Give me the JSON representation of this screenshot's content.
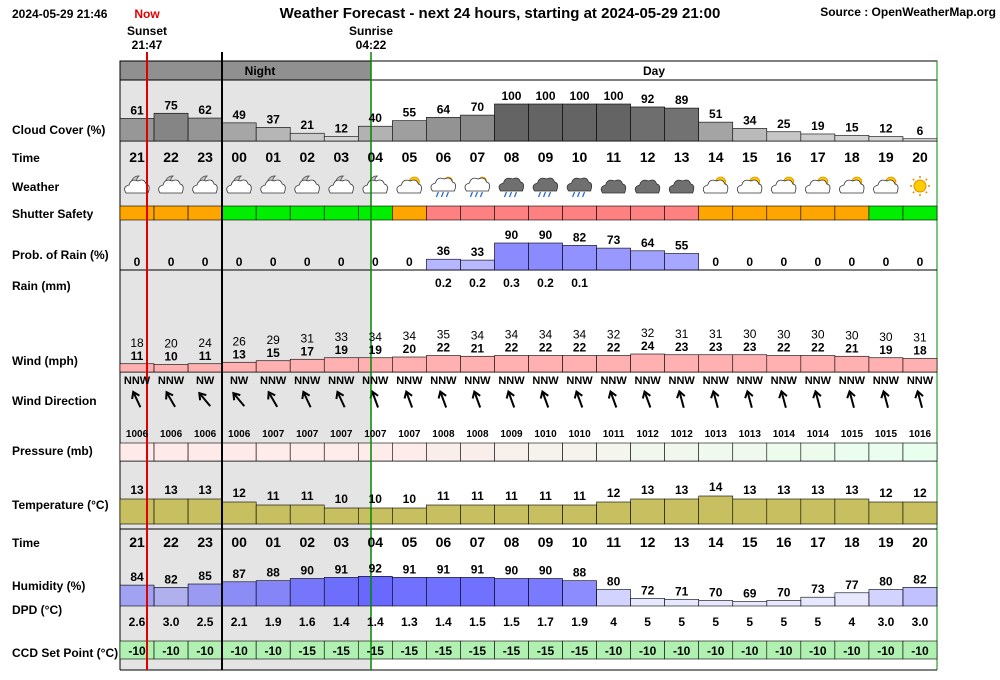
{
  "header": {
    "timestamp": "2024-05-29 21:46",
    "title": "Weather Forecast - next 24 hours, starting at 2024-05-29 21:00",
    "source": "Source : OpenWeatherMap.org"
  },
  "markers": {
    "now": "Now",
    "sunset": "Sunset",
    "sunset_time": "21:47",
    "sunrise": "Sunrise",
    "sunrise_time": "04:22",
    "night": "Night",
    "day": "Day"
  },
  "colors": {
    "night_bg": "#e4e4e4",
    "night_band": "#909090",
    "now_line": "#e00000",
    "sunrise_line": "#008800",
    "safety_orange": "#ffa500",
    "safety_green": "#00ee00",
    "safety_red": "#ff8080",
    "rain_bar": "#8080ff",
    "wind_bar": "#ffb0b0",
    "temp_bar": "#c8c060",
    "humidity_bar": "#6060ff",
    "ccd_bg": "#b0f0b0"
  },
  "chart_data": {
    "type": "table",
    "hours": [
      "21",
      "22",
      "23",
      "00",
      "01",
      "02",
      "03",
      "04",
      "05",
      "06",
      "07",
      "08",
      "09",
      "10",
      "11",
      "12",
      "13",
      "14",
      "15",
      "16",
      "17",
      "18",
      "19",
      "20"
    ],
    "row_labels": {
      "cloud": "Cloud Cover (%)",
      "time": "Time",
      "weather": "Weather",
      "safety": "Shutter Safety",
      "prob": "Prob. of Rain (%)",
      "rain": "Rain (mm)",
      "wind": "Wind (mph)",
      "wdir": "Wind Direction",
      "pressure": "Pressure (mb)",
      "temp": "Temperature (°C)",
      "time2": "Time",
      "humidity": "Humidity (%)",
      "dpd": "DPD (°C)",
      "ccd": "CCD Set Point (°C)"
    },
    "cloud_cover": [
      61,
      75,
      62,
      49,
      37,
      21,
      12,
      40,
      55,
      64,
      70,
      100,
      100,
      100,
      100,
      92,
      89,
      51,
      34,
      25,
      19,
      15,
      12,
      6
    ],
    "weather_icons": [
      "partly-cloudy-night-icon",
      "partly-cloudy-night-icon",
      "partly-cloudy-night-icon",
      "partly-cloudy-night-icon",
      "partly-cloudy-night-icon",
      "partly-cloudy-night-icon",
      "partly-cloudy-night-icon",
      "partly-cloudy-night-icon",
      "partly-cloudy-day-icon",
      "light-rain-icon",
      "light-rain-icon",
      "rain-cloud-icon",
      "rain-cloud-icon",
      "rain-cloud-icon",
      "overcast-icon",
      "overcast-icon",
      "overcast-icon",
      "partly-cloudy-day-icon",
      "partly-cloudy-day-icon",
      "partly-cloudy-day-icon",
      "partly-cloudy-day-icon",
      "partly-cloudy-day-icon",
      "partly-cloudy-day-icon",
      "sun-icon"
    ],
    "shutter_safety": [
      "orange",
      "orange",
      "orange",
      "green",
      "green",
      "green",
      "green",
      "green",
      "orange",
      "red",
      "red",
      "red",
      "red",
      "red",
      "red",
      "red",
      "red",
      "orange",
      "orange",
      "orange",
      "orange",
      "orange",
      "green",
      "green"
    ],
    "prob_rain": [
      0,
      0,
      0,
      0,
      0,
      0,
      0,
      0,
      0,
      36,
      33,
      90,
      90,
      82,
      73,
      64,
      55,
      0,
      0,
      0,
      0,
      0,
      0,
      0
    ],
    "rain_mm": [
      null,
      null,
      null,
      null,
      null,
      null,
      null,
      null,
      null,
      0.2,
      0.2,
      0.3,
      0.2,
      0.1,
      null,
      null,
      null,
      null,
      null,
      null,
      null,
      null,
      null,
      null
    ],
    "wind_gust": [
      18,
      20,
      24,
      26,
      29,
      31,
      33,
      34,
      34,
      35,
      34,
      34,
      34,
      34,
      32,
      32,
      31,
      31,
      30,
      30,
      30,
      30,
      30,
      31
    ],
    "wind_speed": [
      11,
      10,
      11,
      13,
      15,
      17,
      19,
      19,
      20,
      22,
      21,
      22,
      22,
      22,
      22,
      24,
      23,
      23,
      23,
      22,
      22,
      21,
      19,
      18
    ],
    "wind_direction": [
      "NNW",
      "NNW",
      "NW",
      "NW",
      "NNW",
      "NNW",
      "NNW",
      "NNW",
      "NNW",
      "NNW",
      "NNW",
      "NNW",
      "NNW",
      "NNW",
      "NNW",
      "NNW",
      "NNW",
      "NNW",
      "NNW",
      "NNW",
      "NNW",
      "NNW",
      "NNW",
      "NNW"
    ],
    "wind_bearing": [
      335,
      330,
      320,
      320,
      330,
      335,
      335,
      340,
      340,
      340,
      340,
      340,
      340,
      340,
      340,
      340,
      345,
      345,
      345,
      345,
      345,
      345,
      345,
      345
    ],
    "pressure": [
      1006,
      1006,
      1006,
      1006,
      1007,
      1007,
      1007,
      1007,
      1007,
      1008,
      1008,
      1009,
      1010,
      1010,
      1011,
      1012,
      1012,
      1013,
      1013,
      1014,
      1014,
      1015,
      1015,
      1016
    ],
    "temperature": [
      13,
      13,
      13,
      12,
      11,
      11,
      10,
      10,
      10,
      11,
      11,
      11,
      11,
      11,
      12,
      13,
      13,
      14,
      13,
      13,
      13,
      13,
      12,
      12
    ],
    "humidity": [
      84,
      82,
      85,
      87,
      88,
      90,
      91,
      92,
      91,
      91,
      91,
      90,
      90,
      88,
      80,
      72,
      71,
      70,
      69,
      70,
      73,
      77,
      80,
      82
    ],
    "dpd": [
      2.6,
      3.0,
      2.5,
      2.1,
      1.9,
      1.6,
      1.4,
      1.4,
      1.3,
      1.4,
      1.5,
      1.5,
      1.7,
      1.9,
      4,
      5,
      5,
      5,
      5,
      5,
      5,
      4,
      3,
      3
    ],
    "ccd_set_point": [
      -10,
      -10,
      -10,
      -10,
      -10,
      -15,
      -15,
      -15,
      -15,
      -15,
      -15,
      -15,
      -15,
      -15,
      -10,
      -10,
      -10,
      -10,
      -10,
      -10,
      -10,
      -10,
      -10,
      -10
    ]
  }
}
